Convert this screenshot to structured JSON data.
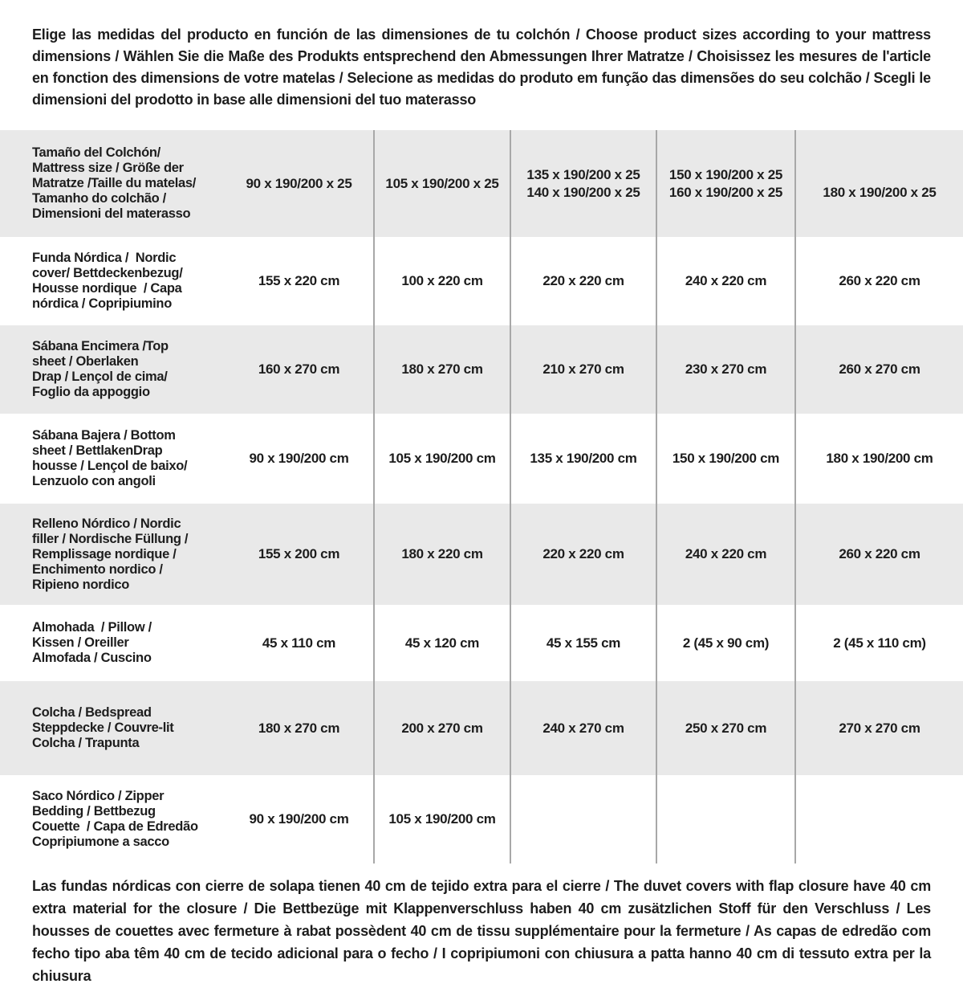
{
  "intro": "Elige las medidas del producto en función de las dimensiones de tu colchón / Choose product sizes according to your mattress dimensions / Wählen Sie die Maße des Produkts entsprechend den Abmessungen Ihrer Matratze / Choisissez les mesures de l'article en fonction des dimensions de votre matelas / Selecione as medidas do produto em função das dimensões do seu colchão / Scegli le dimensioni del prodotto in base alle dimensioni del tuo materasso",
  "table": {
    "header": {
      "label": "Tamaño del Colchón/\nMattress size / Größe der\nMatratze /Taille du matelas/\nTamanho do colchão /\nDimensioni del materasso",
      "columns": [
        "90 x 190/200 x 25",
        "105 x 190/200 x 25",
        "135 x 190/200 x 25\n140 x 190/200 x 25",
        "150 x 190/200 x 25\n160 x 190/200 x 25",
        "180 x 190/200 x 25"
      ]
    },
    "rows": [
      {
        "label": "Funda Nórdica /  Nordic\ncover/ Bettdeckenbezug/\nHousse nordique  / Capa\nnórdica / Copripiumino",
        "values": [
          "155 x 220 cm",
          "100 x 220 cm",
          "220 x 220 cm",
          "240 x 220 cm",
          "260 x 220 cm"
        ]
      },
      {
        "label": "Sábana Encimera /Top\nsheet / Oberlaken\nDrap / Lençol de cima/\nFoglio da appoggio",
        "values": [
          "160 x 270 cm",
          "180 x 270 cm",
          "210 x 270 cm",
          "230 x 270 cm",
          "260 x 270 cm"
        ]
      },
      {
        "label": "Sábana Bajera / Bottom\nsheet / BettlakenDrap\nhousse / Lençol de baixo/\nLenzuolo con angoli",
        "values": [
          "90 x 190/200 cm",
          "105 x 190/200 cm",
          "135 x 190/200 cm",
          "150 x 190/200 cm",
          "180 x 190/200 cm"
        ]
      },
      {
        "label": "Relleno Nórdico / Nordic\nfiller / Nordische Füllung /\nRemplissage nordique /\nEnchimento nordico /\nRipieno nordico",
        "values": [
          "155 x 200 cm",
          "180 x 220 cm",
          "220 x 220 cm",
          "240 x 220 cm",
          "260 x 220 cm"
        ]
      },
      {
        "label": "Almohada  / Pillow /\nKissen / Oreiller\nAlmofada / Cuscino",
        "values": [
          "45 x 110 cm",
          "45 x 120 cm",
          "45 x 155 cm",
          "2 (45 x 90 cm)",
          "2 (45 x 110 cm)"
        ]
      },
      {
        "label": "Colcha / Bedspread\nSteppdecke / Couvre-lit\nColcha / Trapunta",
        "values": [
          "180 x 270 cm",
          "200 x 270 cm",
          "240 x 270 cm",
          "250 x 270 cm",
          "270 x 270 cm"
        ]
      },
      {
        "label": "Saco Nórdico / Zipper\nBedding / Bettbezug\nCouette  / Capa de Edredão\nCopripiumone a sacco",
        "values": [
          "90 x 190/200 cm",
          "105 x 190/200 cm",
          "",
          "",
          ""
        ]
      }
    ]
  },
  "footnote": "Las fundas nórdicas con cierre de solapa tienen 40 cm de tejido extra para el cierre  / The duvet covers with flap closure have 40 cm extra material for the closure / Die Bettbezüge mit Klappenverschluss haben 40 cm zusätzlichen Stoff für den Verschluss / Les housses de couettes avec fermeture à rabat possèdent 40 cm de tissu supplémentaire pour la fermeture / As capas de edredão com fecho tipo aba têm 40 cm de tecido adicional para o fecho / I copripiumoni con chiusura a patta hanno 40 cm di tessuto extra per la chiusura",
  "colors": {
    "row_stripe": "#e9e9e9",
    "divider": "#a8a8a8",
    "text": "#1d1d1d",
    "background": "#ffffff"
  }
}
